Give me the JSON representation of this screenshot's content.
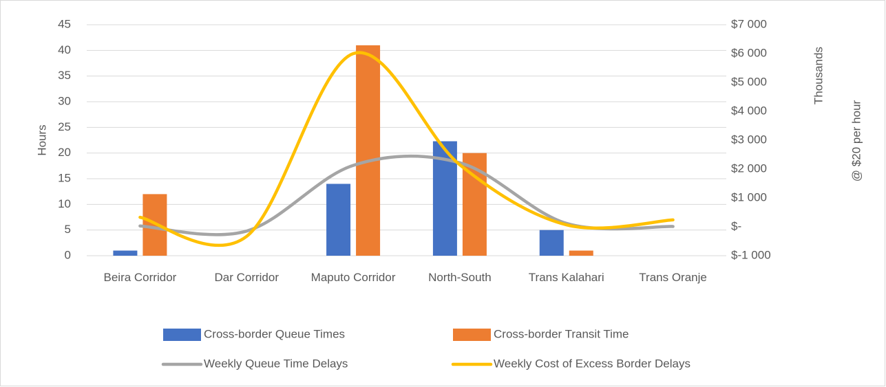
{
  "chart_data": {
    "type": "combo",
    "categories": [
      "Beira Corridor",
      "Dar Corridor",
      "Maputo Corridor",
      "North-South",
      "Trans Kalahari",
      "Trans Oranje"
    ],
    "series": [
      {
        "name": "Cross-border Queue Times",
        "type": "bar",
        "color": "#4472c4",
        "values": [
          1,
          0,
          14,
          22.3,
          5,
          0
        ]
      },
      {
        "name": "Cross-border Transit Time",
        "type": "bar",
        "color": "#ed7d31",
        "values": [
          12,
          0,
          41,
          20,
          1,
          0
        ]
      },
      {
        "name": "Weekly Queue Time Delays",
        "type": "line",
        "color": "#a5a5a5",
        "values": [
          5.8,
          4.8,
          17.6,
          18.1,
          6.3,
          5.7
        ]
      },
      {
        "name": "Weekly Cost of Excess Border Delays",
        "type": "line",
        "axis": "y2",
        "color": "#ffc000",
        "values": [
          330,
          -330,
          6000,
          2150,
          70,
          240
        ]
      }
    ],
    "ylabel": "Hours",
    "y2label": "Thousands",
    "y2label2": "@ $20 per hour",
    "ylim": [
      0,
      45
    ],
    "yticks": [
      0,
      5,
      10,
      15,
      20,
      25,
      30,
      35,
      40,
      45
    ],
    "y2lim": [
      -1000,
      7000
    ],
    "y2ticks": [
      {
        "value": -1000,
        "label": "$-1 000"
      },
      {
        "value": 0,
        "label": "$-"
      },
      {
        "value": 1000,
        "label": "$1 000"
      },
      {
        "value": 2000,
        "label": "$2 000"
      },
      {
        "value": 3000,
        "label": "$3 000"
      },
      {
        "value": 4000,
        "label": "$4 000"
      },
      {
        "value": 5000,
        "label": "$5 000"
      },
      {
        "value": 6000,
        "label": "$6 000"
      },
      {
        "value": 7000,
        "label": "$7 000"
      }
    ],
    "grid": true,
    "smooth": true,
    "legend": "bottom"
  }
}
